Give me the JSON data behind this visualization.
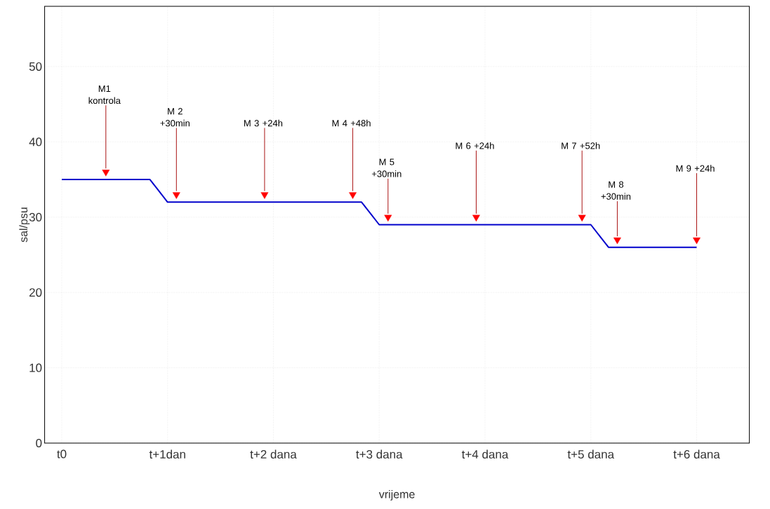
{
  "chart_data": {
    "type": "line",
    "xlabel": "vrijeme",
    "ylabel": "sal/psu",
    "categories": [
      "t0",
      null,
      null,
      null,
      null,
      null,
      null,
      null,
      null,
      null,
      null,
      null,
      "t+1dan",
      null,
      null,
      null,
      null,
      null,
      null,
      null,
      null,
      null,
      null,
      null,
      "t+2 dana",
      null,
      null,
      null,
      null,
      null,
      null,
      null,
      null,
      null,
      null,
      null,
      "t+3 dana",
      null,
      null,
      null,
      null,
      null,
      null,
      null,
      null,
      null,
      null,
      null,
      "t+4 dana",
      null,
      null,
      null,
      null,
      null,
      null,
      null,
      null,
      null,
      null,
      null,
      "t+5 dana",
      null,
      null,
      null,
      null,
      null,
      null,
      null,
      null,
      null,
      null,
      null,
      "t+6 dana"
    ],
    "series": [
      {
        "color": "#0000cc",
        "values": [
          35,
          35,
          35,
          35,
          35,
          35,
          35,
          35,
          35,
          35,
          35,
          33.5,
          32,
          32,
          32,
          32,
          32,
          32,
          32,
          32,
          32,
          32,
          32,
          32,
          32,
          32,
          32,
          32,
          32,
          32,
          32,
          32,
          32,
          32,
          32,
          30.5,
          29,
          29,
          29,
          29,
          29,
          29,
          29,
          29,
          29,
          29,
          29,
          29,
          29,
          29,
          29,
          29,
          29,
          29,
          29,
          29,
          29,
          29,
          29,
          29,
          29,
          27.5,
          26,
          26,
          26,
          26,
          26,
          26,
          26,
          26,
          26,
          26,
          26
        ]
      },
      {
        "type": "scatter",
        "color": "#ff0000",
        "marker": "triangle",
        "values": [
          null,
          null,
          null,
          null,
          null,
          36,
          null,
          null,
          null,
          null,
          null,
          null,
          null,
          33,
          null,
          null,
          null,
          null,
          null,
          null,
          null,
          null,
          null,
          33,
          null,
          null,
          null,
          null,
          null,
          null,
          null,
          null,
          null,
          33,
          null,
          null,
          null,
          30,
          null,
          null,
          null,
          null,
          null,
          null,
          null,
          null,
          null,
          30,
          null,
          null,
          null,
          null,
          null,
          null,
          null,
          null,
          null,
          null,
          null,
          30,
          null,
          null,
          null,
          27,
          null,
          null,
          null,
          null,
          null,
          null,
          null,
          null,
          27
        ]
      }
    ],
    "ylim": [
      0,
      58
    ],
    "yticks": [
      0,
      10,
      20,
      30,
      40,
      50
    ],
    "grid": true,
    "annotations": [
      {
        "text": "M1 kontrola",
        "y": 36
      },
      {
        "text": "M 2 +30min",
        "y": 33
      },
      {
        "text": "M 3 +24h",
        "y": 33
      },
      {
        "text": "M 4 +48h",
        "y": 33
      },
      {
        "text": "M 5 +30min",
        "y": 30
      },
      {
        "text": "M 6 +24h",
        "y": 30
      },
      {
        "text": "M 7 +52h",
        "y": 30
      },
      {
        "text": "M 8 +30min",
        "y": 27
      },
      {
        "text": "M 9 +24h",
        "y": 27
      }
    ]
  }
}
